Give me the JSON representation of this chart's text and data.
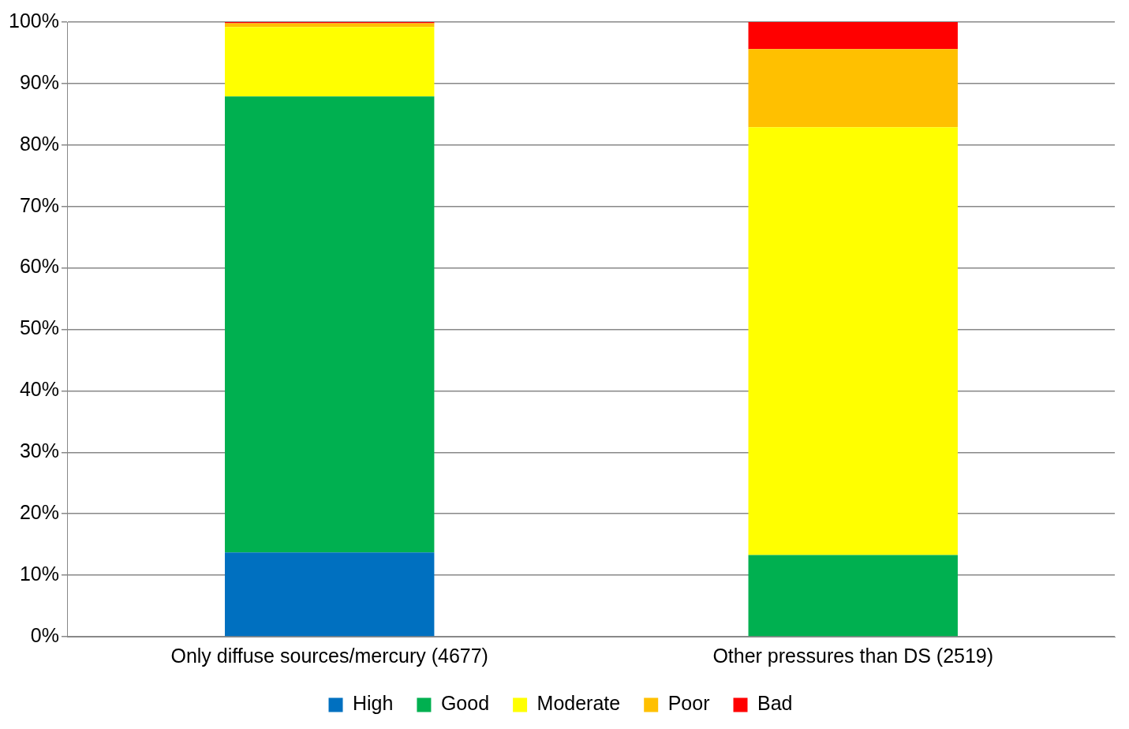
{
  "chart_data": {
    "type": "bar",
    "stacked": true,
    "categories": [
      "Only diffuse sources/mercury (4677)",
      "Other pressures than DS (2519)"
    ],
    "series": [
      {
        "name": "High",
        "color": "#0070c0",
        "values": [
          13.7,
          0
        ]
      },
      {
        "name": "Good",
        "color": "#00b050",
        "values": [
          74.2,
          13.3
        ]
      },
      {
        "name": "Moderate",
        "color": "#ffff00",
        "values": [
          11.3,
          69.6
        ]
      },
      {
        "name": "Poor",
        "color": "#ffc000",
        "values": [
          0.6,
          12.7
        ]
      },
      {
        "name": "Bad",
        "color": "#ff0000",
        "values": [
          0.2,
          4.4
        ]
      }
    ],
    "ylim": [
      0,
      100
    ],
    "yticks": [
      {
        "value": 0,
        "label": "0%"
      },
      {
        "value": 10,
        "label": "10%"
      },
      {
        "value": 20,
        "label": "20%"
      },
      {
        "value": 30,
        "label": "30%"
      },
      {
        "value": 40,
        "label": "40%"
      },
      {
        "value": 50,
        "label": "50%"
      },
      {
        "value": 60,
        "label": "60%"
      },
      {
        "value": 70,
        "label": "70%"
      },
      {
        "value": 80,
        "label": "80%"
      },
      {
        "value": 90,
        "label": "90%"
      },
      {
        "value": 100,
        "label": "100%"
      }
    ],
    "grid": "y",
    "legend": "bottom"
  }
}
